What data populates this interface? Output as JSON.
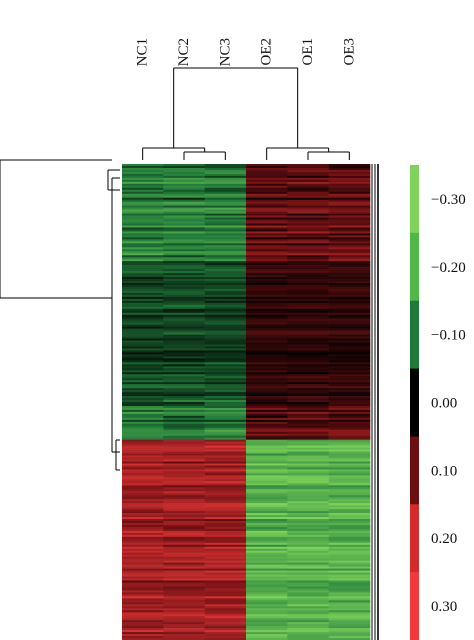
{
  "chart_data": {
    "type": "heatmap",
    "columns": [
      "NC1",
      "NC2",
      "NC3",
      "OE2",
      "OE1",
      "OE3"
    ],
    "column_groups": [
      {
        "samples": [
          "NC1",
          "NC2",
          "NC3"
        ]
      },
      {
        "samples": [
          "OE2",
          "OE1",
          "OE3"
        ]
      }
    ],
    "row_clusters": [
      {
        "fraction_of_rows": 0.58,
        "group1_mean": -0.12,
        "group2_mean": 0.09
      },
      {
        "fraction_of_rows": 0.42,
        "group1_mean": 0.18,
        "group2_mean": -0.22
      }
    ],
    "approx_row_count": 240,
    "color_scale": {
      "ticks": [
        -0.3,
        -0.2,
        -0.1,
        0.0,
        0.1,
        0.2,
        0.3
      ],
      "tick_labels": [
        "−0.30",
        "−0.20",
        "−0.10",
        "0.00",
        "0.10",
        "0.20",
        "0.30"
      ],
      "low_color": "#7fd35a",
      "mid_low_color": "#1f7a3a",
      "mid_color": "#000000",
      "mid_high_color": "#6b0f12",
      "high_color": "#f23a3a"
    },
    "has_column_dendrogram": true,
    "has_row_dendrogram": true,
    "legend_placement": "right"
  }
}
